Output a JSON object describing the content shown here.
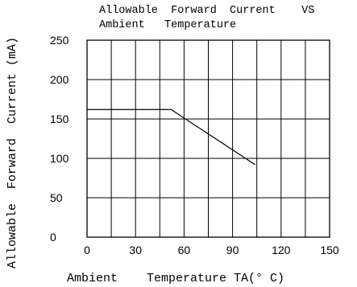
{
  "chart_data": {
    "type": "line",
    "title_line1": "Allowable  Forward  Current    VS",
    "title_line2": "Ambient   Temperature",
    "xlabel": "Ambient    Temperature TA(° C)",
    "ylabel": "Allowable  Forward  Current (mA)",
    "xlim": [
      0,
      150
    ],
    "ylim": [
      0,
      250
    ],
    "x_ticks": [
      "0",
      "30",
      "60",
      "90",
      "120",
      "150"
    ],
    "y_ticks": [
      "0",
      "50",
      "100",
      "150",
      "200",
      "250"
    ],
    "x_grid": [
      0,
      15,
      30,
      45,
      60,
      75,
      90,
      105,
      120,
      135,
      150
    ],
    "y_grid": [
      0,
      50,
      100,
      150,
      200,
      250
    ],
    "grid": true,
    "series": [
      {
        "x": [
          0,
          52,
          104
        ],
        "y": [
          162,
          162,
          92
        ]
      }
    ]
  }
}
